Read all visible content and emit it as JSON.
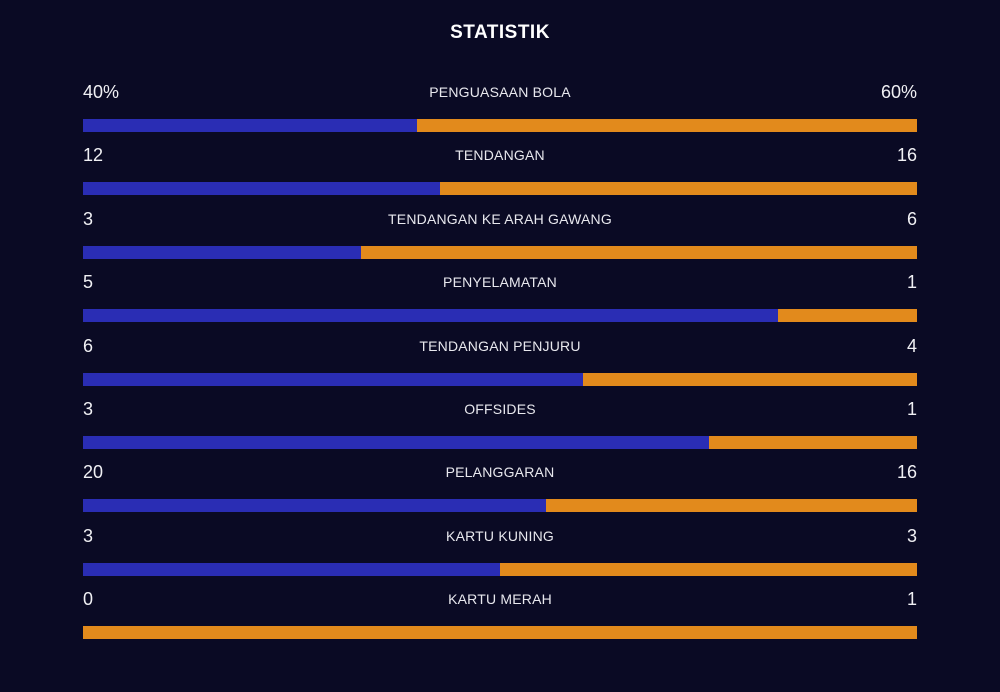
{
  "title": "STATISTIK",
  "colors": {
    "background": "#0a0a24",
    "left_team": "#2a2db4",
    "right_team": "#e28a1c"
  },
  "stats": [
    {
      "label": "PENGUASAAN BOLA",
      "left_display": "40%",
      "right_display": "60%",
      "left_share": 0.4
    },
    {
      "label": "TENDANGAN",
      "left_display": "12",
      "right_display": "16",
      "left_share": 0.4286
    },
    {
      "label": "TENDANGAN KE ARAH GAWANG",
      "left_display": "3",
      "right_display": "6",
      "left_share": 0.3333
    },
    {
      "label": "PENYELAMATAN",
      "left_display": "5",
      "right_display": "1",
      "left_share": 0.8333
    },
    {
      "label": "TENDANGAN PENJURU",
      "left_display": "6",
      "right_display": "4",
      "left_share": 0.6
    },
    {
      "label": "OFFSIDES",
      "left_display": "3",
      "right_display": "1",
      "left_share": 0.75
    },
    {
      "label": "PELANGGARAN",
      "left_display": "20",
      "right_display": "16",
      "left_share": 0.5556
    },
    {
      "label": "KARTU KUNING",
      "left_display": "3",
      "right_display": "3",
      "left_share": 0.5
    },
    {
      "label": "KARTU MERAH",
      "left_display": "0",
      "right_display": "1",
      "left_share": 0.0
    }
  ]
}
